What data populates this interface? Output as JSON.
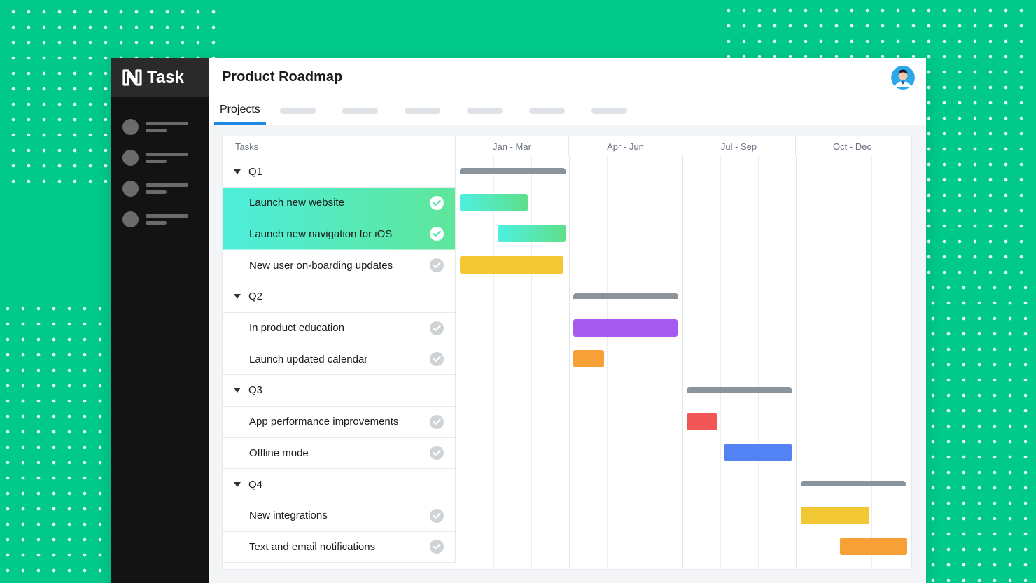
{
  "app": {
    "logo_text": "Task",
    "title": "Product Roadmap"
  },
  "tabs": {
    "active_label": "Projects"
  },
  "timeline": {
    "tasks_header": "Tasks",
    "quarters": [
      "Jan - Mar",
      "Apr - Jun",
      "Jul - Sep",
      "Oct - Dec"
    ]
  },
  "groups": [
    {
      "label": "Q1",
      "tasks": [
        {
          "label": "Launch new website",
          "active": true,
          "color": "#4fe3c9"
        },
        {
          "label": "Launch new navigation for iOS",
          "active": true,
          "color": "#4fe3c9"
        },
        {
          "label": "New user on-boarding updates",
          "active": false,
          "color": "#f2c734"
        }
      ]
    },
    {
      "label": "Q2",
      "tasks": [
        {
          "label": "In product education",
          "active": false,
          "color": "#a65bf0"
        },
        {
          "label": "Launch updated calendar",
          "active": false,
          "color": "#f7a035"
        }
      ]
    },
    {
      "label": "Q3",
      "tasks": [
        {
          "label": "App performance improvements",
          "active": false,
          "color": "#f25556"
        },
        {
          "label": "Offline mode",
          "active": false,
          "color": "#5382f4"
        }
      ]
    },
    {
      "label": "Q4",
      "tasks": [
        {
          "label": "New integrations",
          "active": false,
          "color": "#f2c734"
        },
        {
          "label": "Text  and email notifications",
          "active": false,
          "color": "#f7a035"
        }
      ]
    }
  ],
  "colors": {
    "accent": "#1e88e5",
    "brand_green": "#00c98a",
    "group_bar": "#8a949c"
  }
}
